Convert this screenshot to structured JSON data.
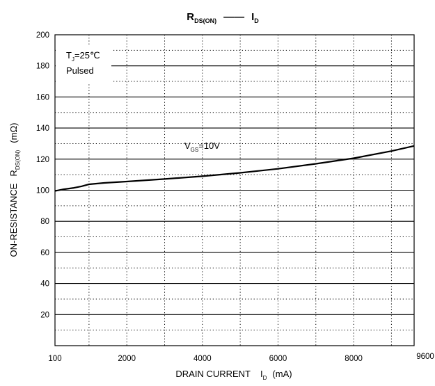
{
  "chart_data": {
    "type": "line",
    "title": {
      "left_main": "R",
      "left_sub": "DS(ON)",
      "dash": "——",
      "right_main": "I",
      "right_sub": "D"
    },
    "xlabel": {
      "main": "DRAIN CURRENT",
      "symbol": "I",
      "symbol_sub": "D",
      "unit": "(mA)"
    },
    "ylabel": {
      "main": "ON-RESISTANCE",
      "symbol": "R",
      "symbol_sub": "DS(ON)",
      "unit": "(mΩ)"
    },
    "xlim": [
      100,
      9600
    ],
    "ylim": [
      0,
      200
    ],
    "x_ticks": [
      {
        "value": 100,
        "label": "100"
      },
      {
        "value": 2000,
        "label": "2000"
      },
      {
        "value": 4000,
        "label": "4000"
      },
      {
        "value": 6000,
        "label": "6000"
      },
      {
        "value": 8000,
        "label": "8000"
      },
      {
        "value": 9600,
        "label": "9600"
      }
    ],
    "y_ticks": [
      {
        "value": 20,
        "label": "20"
      },
      {
        "value": 40,
        "label": "40"
      },
      {
        "value": 60,
        "label": "60"
      },
      {
        "value": 80,
        "label": "80"
      },
      {
        "value": 100,
        "label": "100"
      },
      {
        "value": 120,
        "label": "120"
      },
      {
        "value": 140,
        "label": "140"
      },
      {
        "value": 160,
        "label": "160"
      },
      {
        "value": 180,
        "label": "180"
      },
      {
        "value": 200,
        "label": "200"
      }
    ],
    "grid": {
      "horizontal_solid_every": 20,
      "horizontal_dotted_every": 10,
      "vertical_dotted_at": [
        1000,
        2000,
        3000,
        4000,
        5000,
        6000,
        7000,
        8000,
        9000
      ]
    },
    "annotations": {
      "conditions": {
        "line1_prefix": "T",
        "line1_sub": "J",
        "line1_suffix": "=25℃",
        "line2": "Pulsed"
      },
      "vgs": {
        "prefix": "V",
        "sub": "GS",
        "suffix": "=10V"
      }
    },
    "series": [
      {
        "x": [
          100,
          300,
          600,
          800,
          1000,
          1400,
          2000,
          3000,
          4000,
          5000,
          6000,
          7000,
          8000,
          9000,
          9600
        ],
        "y": [
          99.5,
          100.5,
          101.5,
          102.5,
          103.8,
          104.7,
          105.6,
          107.2,
          109,
          111.2,
          113.8,
          117,
          120.6,
          125.2,
          128.5
        ]
      }
    ]
  }
}
